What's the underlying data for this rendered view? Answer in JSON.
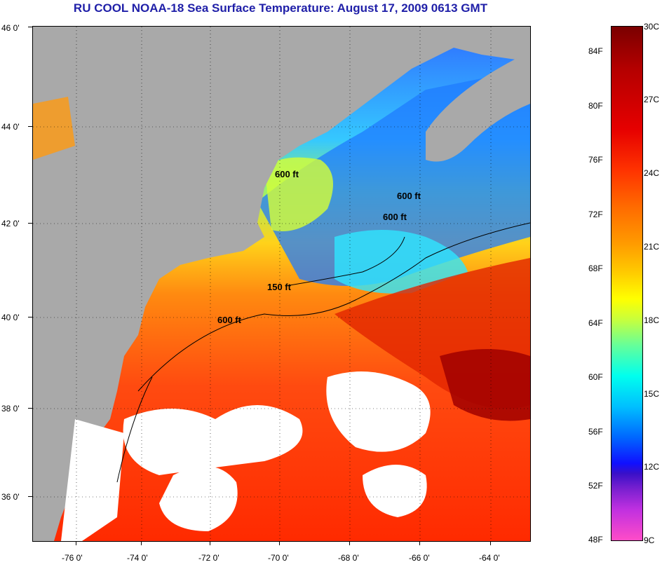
{
  "title": "RU COOL  NOAA-18  Sea Surface Temperature:  August 17, 2009 0613 GMT",
  "map": {
    "latitude_labels": [
      "46 0'",
      "44 0'",
      "42 0'",
      "40 0'",
      "38 0'",
      "36 0'"
    ],
    "longitude_labels": [
      "-76 0'",
      "-74 0'",
      "-72 0'",
      "-70 0'",
      "-68 0'",
      "-66 0'",
      "-64 0'"
    ],
    "contour_labels": [
      "600 ft",
      "600 ft",
      "600 ft",
      "150 ft",
      "600 ft"
    ],
    "colors": {
      "land": "#a9a9a9",
      "cloud": "#ffffff",
      "warm_water": "#ff3300",
      "cool_water": "#00bfff"
    }
  },
  "colorbar": {
    "fahrenheit_labels": [
      "84F",
      "80F",
      "76F",
      "72F",
      "68F",
      "64F",
      "60F",
      "56F",
      "52F",
      "48F"
    ],
    "celsius_labels": [
      "30C",
      "27C",
      "24C",
      "21C",
      "18C",
      "15C",
      "12C",
      "9C"
    ],
    "range_f": [
      48,
      86
    ],
    "range_c": [
      9,
      30
    ]
  }
}
